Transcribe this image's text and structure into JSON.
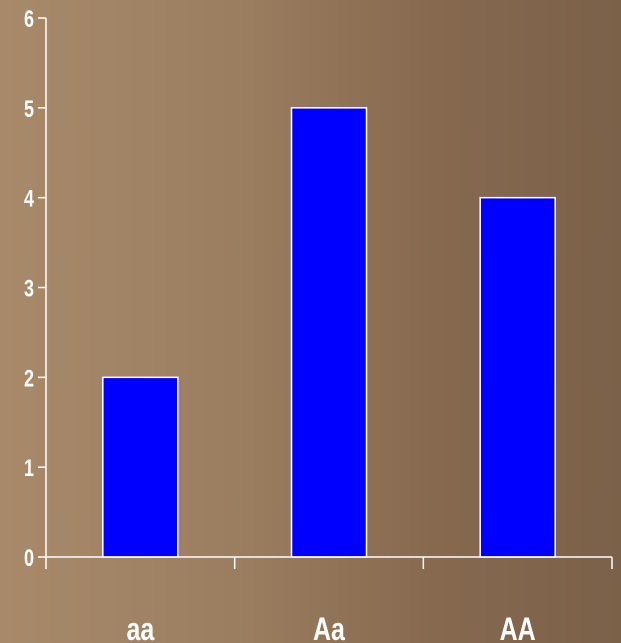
{
  "chart_data": {
    "type": "bar",
    "categories": [
      "aa",
      "Aa",
      "AA"
    ],
    "values": [
      2,
      5,
      4
    ],
    "title": "",
    "xlabel": "",
    "ylabel": "",
    "ylim": [
      0,
      6
    ],
    "yticks": [
      0,
      1,
      2,
      3,
      4,
      5,
      6
    ],
    "grid": false,
    "colors": {
      "bar": "#0000ff",
      "bar_stroke": "#ffffff",
      "axis": "#ffffff",
      "text": "#ffffff"
    }
  }
}
